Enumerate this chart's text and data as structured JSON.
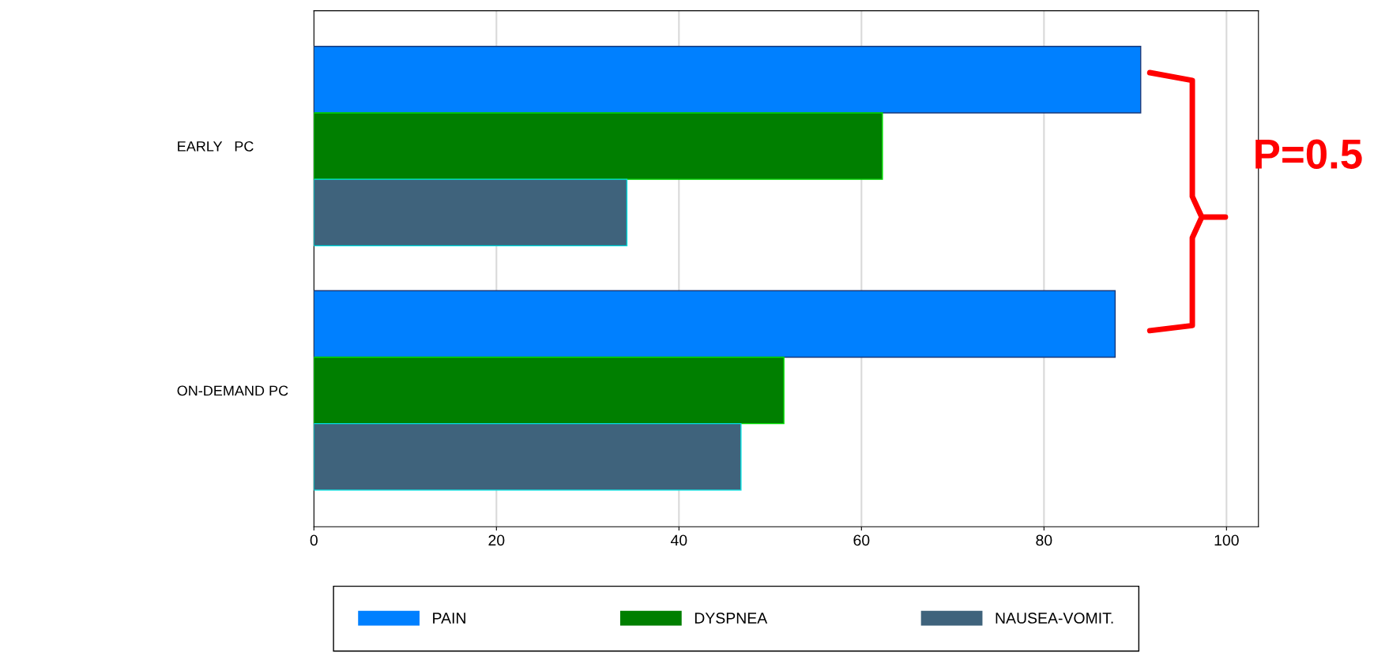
{
  "chart_data": {
    "type": "bar",
    "orientation": "horizontal",
    "categories": [
      "EARLY   PC",
      "ON-DEMAND PC"
    ],
    "series": [
      {
        "name": "PAIN",
        "color": "#0080ff",
        "values": [
          90.6,
          87.8
        ]
      },
      {
        "name": "DYSPNEA",
        "color": "#007f00",
        "values": [
          62.3,
          51.5
        ]
      },
      {
        "name": "NAUSEA-VOMIT.",
        "color": "#3f637c",
        "values": [
          34.3,
          46.8
        ]
      }
    ],
    "xlim": [
      0,
      103.5
    ],
    "xticks": [
      0,
      20,
      40,
      60,
      80,
      100
    ],
    "grid": "x",
    "legend": "bottom",
    "annotations": [
      "P=0.5"
    ]
  }
}
